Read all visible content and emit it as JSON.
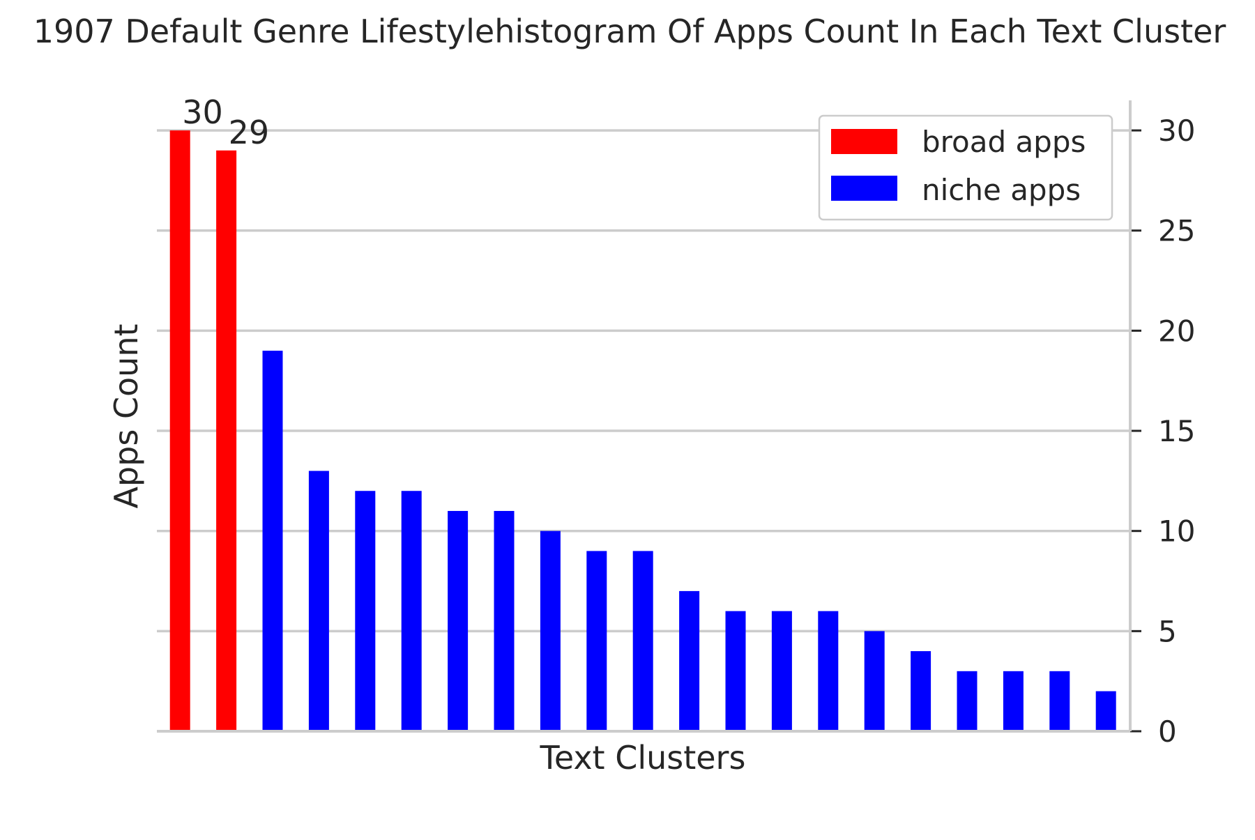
{
  "chart_data": {
    "type": "bar",
    "title": "1907 Default Genre Lifestylehistogram Of Apps Count In Each Text Cluster",
    "xlabel": "Text Clusters",
    "ylabel": "Apps Count",
    "ylim": [
      0,
      31.5
    ],
    "yticks": [
      0,
      5,
      10,
      15,
      20,
      25,
      30
    ],
    "grid": true,
    "legend_position": "top-right",
    "series": [
      {
        "name": "broad apps",
        "color": "#ff0000",
        "values": [
          30,
          29
        ],
        "data_labels": [
          "30",
          "29"
        ]
      },
      {
        "name": "niche apps",
        "color": "#0000ff",
        "values": [
          19,
          13,
          12,
          12,
          11,
          11,
          10,
          9,
          9,
          7,
          6,
          6,
          6,
          5,
          4,
          3,
          3,
          3,
          2
        ]
      }
    ]
  }
}
